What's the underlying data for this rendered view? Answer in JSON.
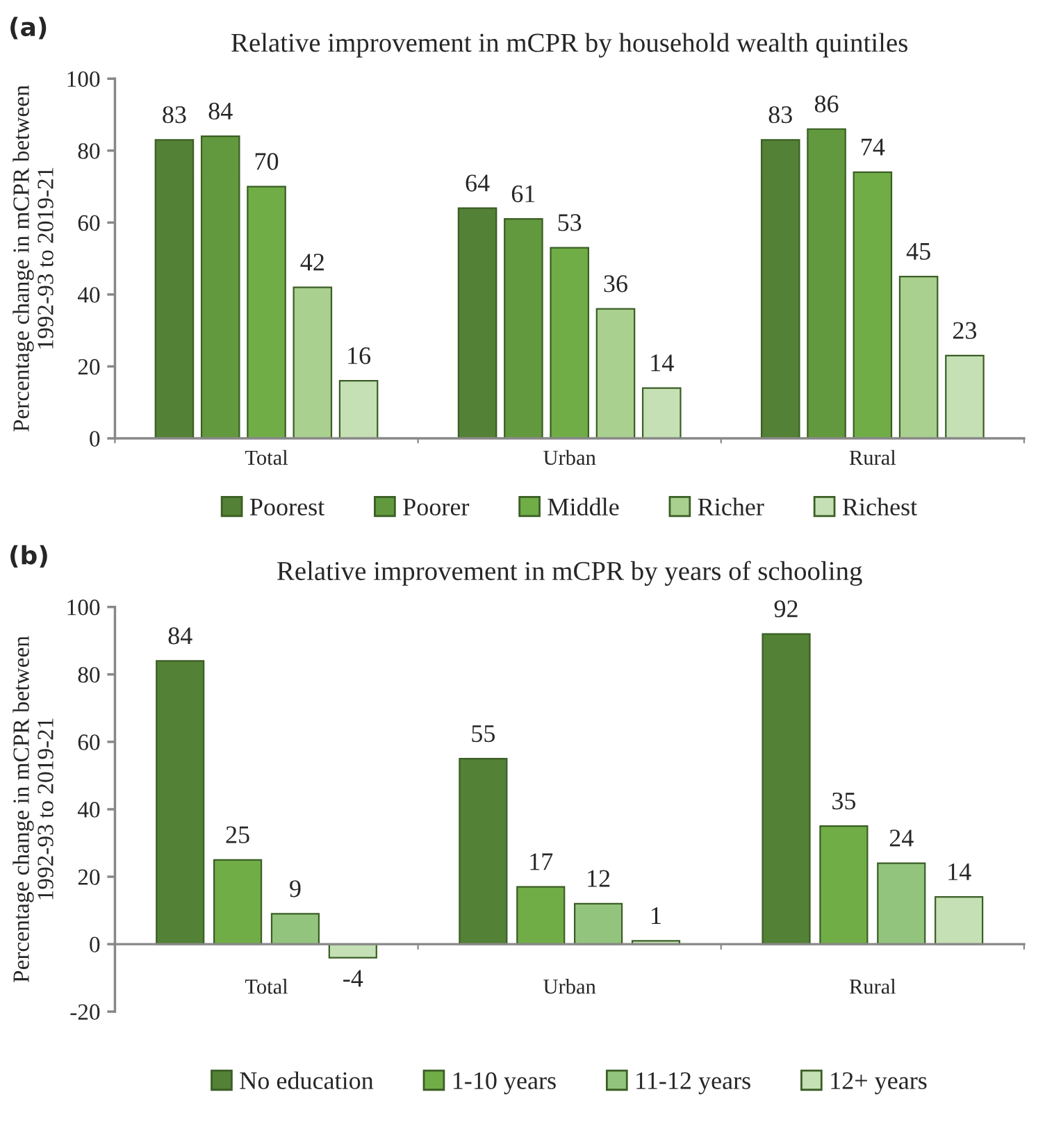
{
  "chart_data": [
    {
      "type": "bar",
      "title": "Relative improvement in mCPR by household wealth quintiles",
      "ylabel": "Percentage change in mCPR between\n1992-93 to 2019-21",
      "annotations": [
        "(a)"
      ],
      "categories": [
        "Total",
        "Urban",
        "Rural"
      ],
      "series": [
        {
          "name": "Poorest",
          "color": "#538135",
          "values": [
            83,
            64,
            83
          ]
        },
        {
          "name": "Poorer",
          "color": "#62993e",
          "values": [
            84,
            61,
            86
          ]
        },
        {
          "name": "Middle",
          "color": "#70ad47",
          "values": [
            70,
            53,
            74
          ]
        },
        {
          "name": "Richer",
          "color": "#a9d08e",
          "values": [
            42,
            36,
            45
          ]
        },
        {
          "name": "Richest",
          "color": "#c5e0b4",
          "values": [
            16,
            14,
            23
          ]
        }
      ],
      "ylim": [
        0,
        100
      ],
      "yticks": [
        0,
        20,
        40,
        60,
        80,
        100
      ],
      "grid": false,
      "legend": "bottom",
      "data_labels": true
    },
    {
      "type": "bar",
      "title": "Relative improvement in mCPR by years of schooling",
      "ylabel": "Percentage change in mCPR between\n1992-93 to 2019-21",
      "annotations": [
        "(b)"
      ],
      "categories": [
        "Total",
        "Urban",
        "Rural"
      ],
      "series": [
        {
          "name": "No education",
          "color": "#538135",
          "values": [
            84,
            55,
            92
          ]
        },
        {
          "name": "1-10 years",
          "color": "#70ad47",
          "values": [
            25,
            17,
            35
          ]
        },
        {
          "name": "11-12 years",
          "color": "#93c47d",
          "values": [
            9,
            12,
            24
          ]
        },
        {
          "name": "12+ years",
          "color": "#c5e0b4",
          "values": [
            -4,
            1,
            14
          ]
        }
      ],
      "ylim": [
        -20,
        100
      ],
      "yticks": [
        -20,
        0,
        20,
        40,
        60,
        80,
        100
      ],
      "grid": false,
      "legend": "bottom",
      "data_labels": true
    }
  ]
}
